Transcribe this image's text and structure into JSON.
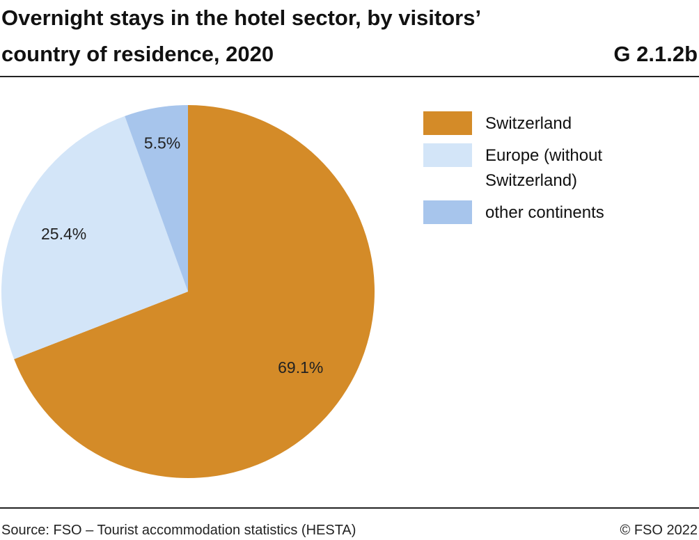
{
  "chart_data": {
    "type": "pie",
    "title": "Overnight stays in the hotel sector, by visitors’ country of residence, 2020",
    "chart_id": "G 2.1.2b",
    "categories": [
      "Switzerland",
      "Europe (without Switzerland)",
      "other continents"
    ],
    "values": [
      69.1,
      25.4,
      5.5
    ],
    "value_labels": [
      "69.1%",
      "25.4%",
      "5.5%"
    ],
    "colors": [
      "#d48b28",
      "#d3e5f8",
      "#a7c5ec"
    ],
    "source": "Source: FSO – Tourist accommodation statistics (HESTA)",
    "copyright": "© FSO 2022"
  }
}
